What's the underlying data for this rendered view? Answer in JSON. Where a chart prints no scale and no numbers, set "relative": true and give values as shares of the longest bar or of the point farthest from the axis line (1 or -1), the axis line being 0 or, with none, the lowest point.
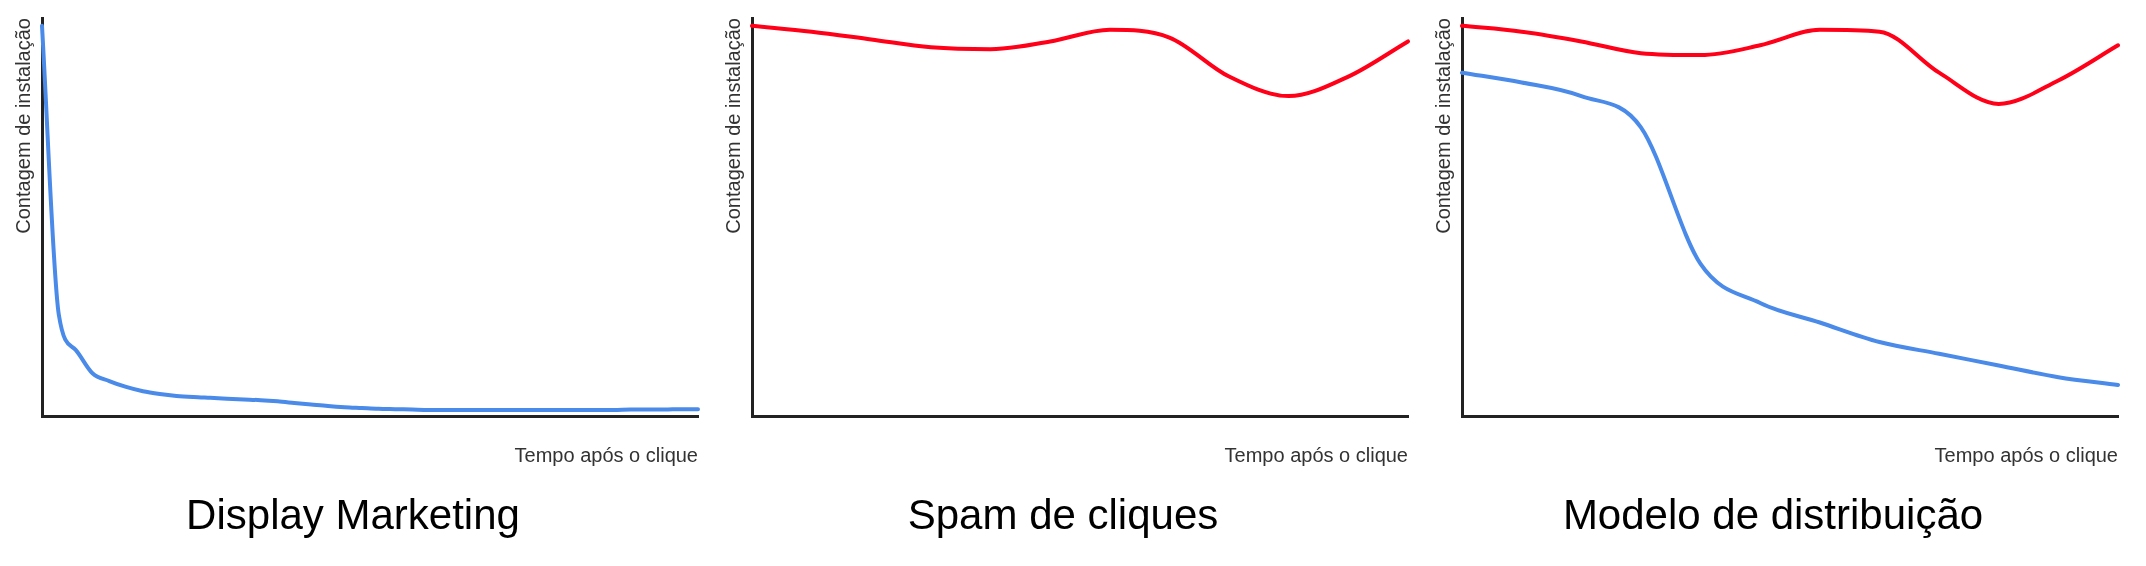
{
  "chart_data": [
    {
      "type": "line",
      "title": "Display Marketing",
      "xlabel": "Tempo após o clique",
      "ylabel": "Contagem de instalação",
      "relative": true,
      "grid": false,
      "legend": false,
      "marker": "none",
      "categories": [
        null,
        null,
        null,
        null,
        null,
        null,
        null,
        null,
        null,
        null,
        null,
        null,
        null,
        null,
        null,
        null,
        null,
        null,
        null,
        null,
        null,
        null,
        null,
        null,
        null,
        null,
        null,
        null,
        null,
        null,
        null,
        null,
        null,
        null,
        null,
        null,
        null,
        null,
        null,
        null
      ],
      "series": [
        {
          "color": "#4a8ae8",
          "values": [
            1.0,
            0.26,
            0.17,
            0.11,
            0.09,
            0.075,
            0.064,
            0.057,
            0.052,
            0.049,
            0.047,
            0.045,
            0.043,
            0.041,
            0.038,
            0.034,
            0.03,
            0.026,
            0.023,
            0.021,
            0.019,
            0.018,
            0.017,
            0.016,
            0.016,
            0.016,
            0.016,
            0.016,
            0.016,
            0.016,
            0.016,
            0.016,
            0.016,
            0.016,
            0.016,
            0.017,
            0.017,
            0.017,
            0.018,
            0.018
          ]
        }
      ]
    },
    {
      "type": "line",
      "title": "Spam de cliques",
      "xlabel": "Tempo após o clique",
      "ylabel": "Contagem de instalação",
      "relative": true,
      "grid": false,
      "legend": false,
      "marker": "none",
      "categories": [
        null,
        null,
        null,
        null,
        null,
        null,
        null,
        null,
        null,
        null,
        null,
        null
      ],
      "series": [
        {
          "color": "#ff0018",
          "values": [
            1.0,
            0.985,
            0.965,
            0.945,
            0.94,
            0.96,
            0.99,
            0.97,
            0.87,
            0.82,
            0.87,
            0.96
          ]
        }
      ]
    },
    {
      "type": "line",
      "title": "Modelo de distribuição",
      "xlabel": "Tempo após o clique",
      "ylabel": "Contagem de instalação",
      "relative": true,
      "grid": false,
      "legend": false,
      "marker": "none",
      "categories": [
        null,
        null,
        null,
        null,
        null,
        null,
        null,
        null,
        null,
        null,
        null,
        null
      ],
      "series": [
        {
          "color": "#ff0018",
          "values": [
            1.0,
            0.985,
            0.96,
            0.93,
            0.925,
            0.95,
            0.99,
            0.985,
            0.88,
            0.8,
            0.86,
            0.95
          ]
        },
        {
          "color": "#4a8ae8",
          "values": [
            0.88,
            0.855,
            0.82,
            0.74,
            0.39,
            0.29,
            0.24,
            0.19,
            0.16,
            0.13,
            0.1,
            0.08
          ]
        }
      ]
    }
  ]
}
